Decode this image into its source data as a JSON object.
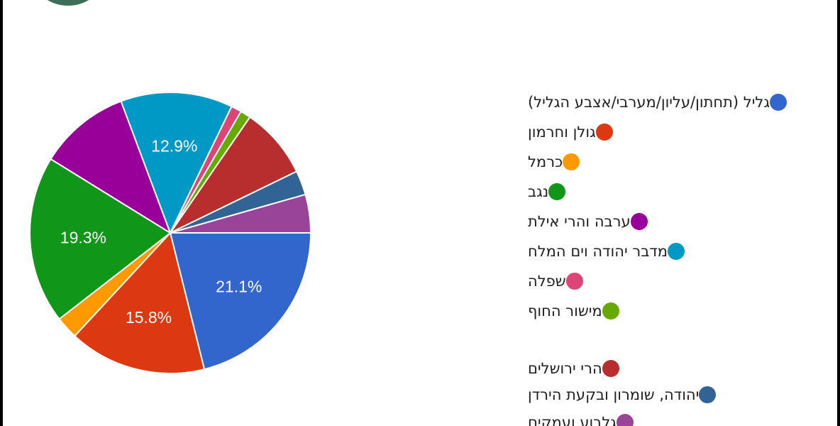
{
  "chart_data": {
    "type": "pie",
    "slices": [
      {
        "label": "גליל (תחתון/עליון/מערבי/אצבע הגליל)",
        "value": 21.1,
        "color": "#3366cc",
        "data_label": "21.1%"
      },
      {
        "label": "גולן וחרמון",
        "value": 15.8,
        "color": "#dc3912",
        "data_label": "15.8%"
      },
      {
        "label": "כרמל",
        "value": 2.6,
        "color": "#ff9900",
        "data_label": ""
      },
      {
        "label": "נגב",
        "value": 19.3,
        "color": "#109618",
        "data_label": "19.3%"
      },
      {
        "label": "ערבה והרי אילת",
        "value": 10.5,
        "color": "#990099",
        "data_label": ""
      },
      {
        "label": "מדבר יהודה וים המלח",
        "value": 12.9,
        "color": "#0099c6",
        "data_label": "12.9%"
      },
      {
        "label": "שפלה",
        "value": 1.2,
        "color": "#dd4477",
        "data_label": ""
      },
      {
        "label": "מישור החוף",
        "value": 1.2,
        "color": "#66aa00",
        "data_label": ""
      },
      {
        "label": "הרי ירושלים",
        "value": 8.2,
        "color": "#b82e2e",
        "data_label": ""
      },
      {
        "label": "יהודה, שומרון ובקעת הירדן",
        "value": 2.8,
        "color": "#316395",
        "data_label": ""
      },
      {
        "label": "גלבוע ועמקים",
        "value": 4.4,
        "color": "#994499",
        "data_label": ""
      }
    ],
    "legend_position": "right"
  }
}
